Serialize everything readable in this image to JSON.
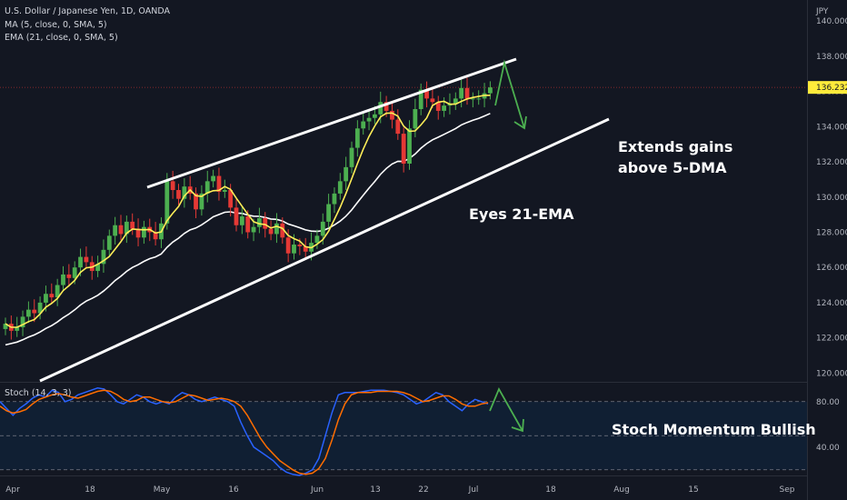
{
  "legend": {
    "symbol": "U.S. Dollar / Japanese Yen, 1D, OANDA",
    "ma": "MA (5, close, 0, SMA, 5)",
    "ema": "EMA (21, close, 0, SMA, 5)",
    "stoch": "Stoch (14, 3, 3)"
  },
  "axis": {
    "currency": "JPY",
    "price_ticks": [
      "140.000",
      "138.000",
      "136.000",
      "134.000",
      "132.000",
      "130.000",
      "128.000",
      "126.000",
      "124.000",
      "122.000",
      "120.000"
    ],
    "stoch_ticks": [
      "80.00",
      "40.00"
    ],
    "date_ticks": [
      "Apr",
      "18",
      "May",
      "16",
      "Jun",
      "13",
      "22",
      "Jul",
      "18",
      "Aug",
      "15",
      "Sep"
    ],
    "last_price": "136.232"
  },
  "annotations": {
    "extends_line1": "Extends gains",
    "extends_line2": "above 5-DMA",
    "eyes": "Eyes 21-EMA",
    "stoch": "Stoch Momentum Bullish"
  },
  "colors": {
    "background": "#131722",
    "up": "#4caf50",
    "down": "#e53935",
    "ma5": "#ffee58",
    "ema21": "#ffffff",
    "stoch_k": "#2962ff",
    "stoch_d": "#ff6d00",
    "arrow": "#4caf50",
    "price_tag": "#ffeb3b"
  },
  "chart_data": {
    "type": "candlestick",
    "y_range": [
      119.5,
      141.2
    ],
    "stoch_range": [
      15,
      95
    ],
    "closes": [
      122.8,
      122.4,
      122.6,
      123.2,
      123.6,
      123.4,
      124.0,
      124.5,
      124.3,
      125.0,
      125.6,
      125.4,
      126.0,
      126.6,
      126.3,
      125.8,
      126.2,
      127.0,
      127.8,
      128.4,
      127.9,
      128.6,
      128.2,
      127.7,
      128.3,
      128.0,
      127.6,
      128.5,
      130.9,
      130.4,
      129.9,
      130.6,
      130.2,
      129.3,
      130.2,
      130.9,
      131.2,
      130.3,
      130.4,
      129.4,
      128.4,
      128.9,
      128.0,
      128.3,
      128.8,
      128.2,
      127.9,
      128.5,
      127.7,
      126.8,
      127.3,
      127.2,
      126.9,
      127.4,
      127.8,
      128.6,
      129.6,
      130.2,
      130.9,
      131.7,
      132.8,
      133.9,
      134.3,
      134.5,
      134.7,
      135.4,
      134.9,
      134.4,
      133.6,
      131.9,
      133.9,
      135.0,
      136.1,
      135.6,
      135.4,
      134.9,
      135.2,
      135.3,
      135.6,
      136.2,
      135.6,
      135.6,
      135.6,
      135.9,
      136.232
    ],
    "stoch_k": [
      80,
      74,
      68,
      74,
      78,
      83,
      86,
      84,
      90,
      88,
      80,
      82,
      86,
      88,
      90,
      92,
      91,
      86,
      80,
      78,
      82,
      86,
      84,
      80,
      78,
      80,
      78,
      84,
      88,
      86,
      82,
      80,
      82,
      84,
      82,
      80,
      76,
      62,
      50,
      40,
      36,
      32,
      28,
      22,
      18,
      16,
      15,
      17,
      20,
      30,
      50,
      70,
      86,
      88,
      88,
      88,
      89,
      90,
      90,
      90,
      89,
      88,
      86,
      82,
      78,
      80,
      84,
      88,
      86,
      80,
      76,
      72,
      78,
      82,
      80,
      78
    ],
    "stoch_d": [
      76,
      72,
      70,
      71,
      73,
      78,
      82,
      84,
      86,
      87,
      86,
      84,
      83,
      85,
      87,
      89,
      90,
      89,
      86,
      82,
      80,
      81,
      84,
      84,
      82,
      80,
      79,
      80,
      83,
      86,
      85,
      83,
      81,
      82,
      83,
      82,
      80,
      76,
      68,
      58,
      48,
      40,
      34,
      28,
      24,
      20,
      17,
      16,
      17,
      21,
      30,
      46,
      64,
      78,
      86,
      88,
      88,
      88,
      89,
      89,
      89,
      89,
      88,
      86,
      83,
      80,
      81,
      83,
      85,
      85,
      82,
      78,
      76,
      76,
      78,
      79
    ]
  }
}
